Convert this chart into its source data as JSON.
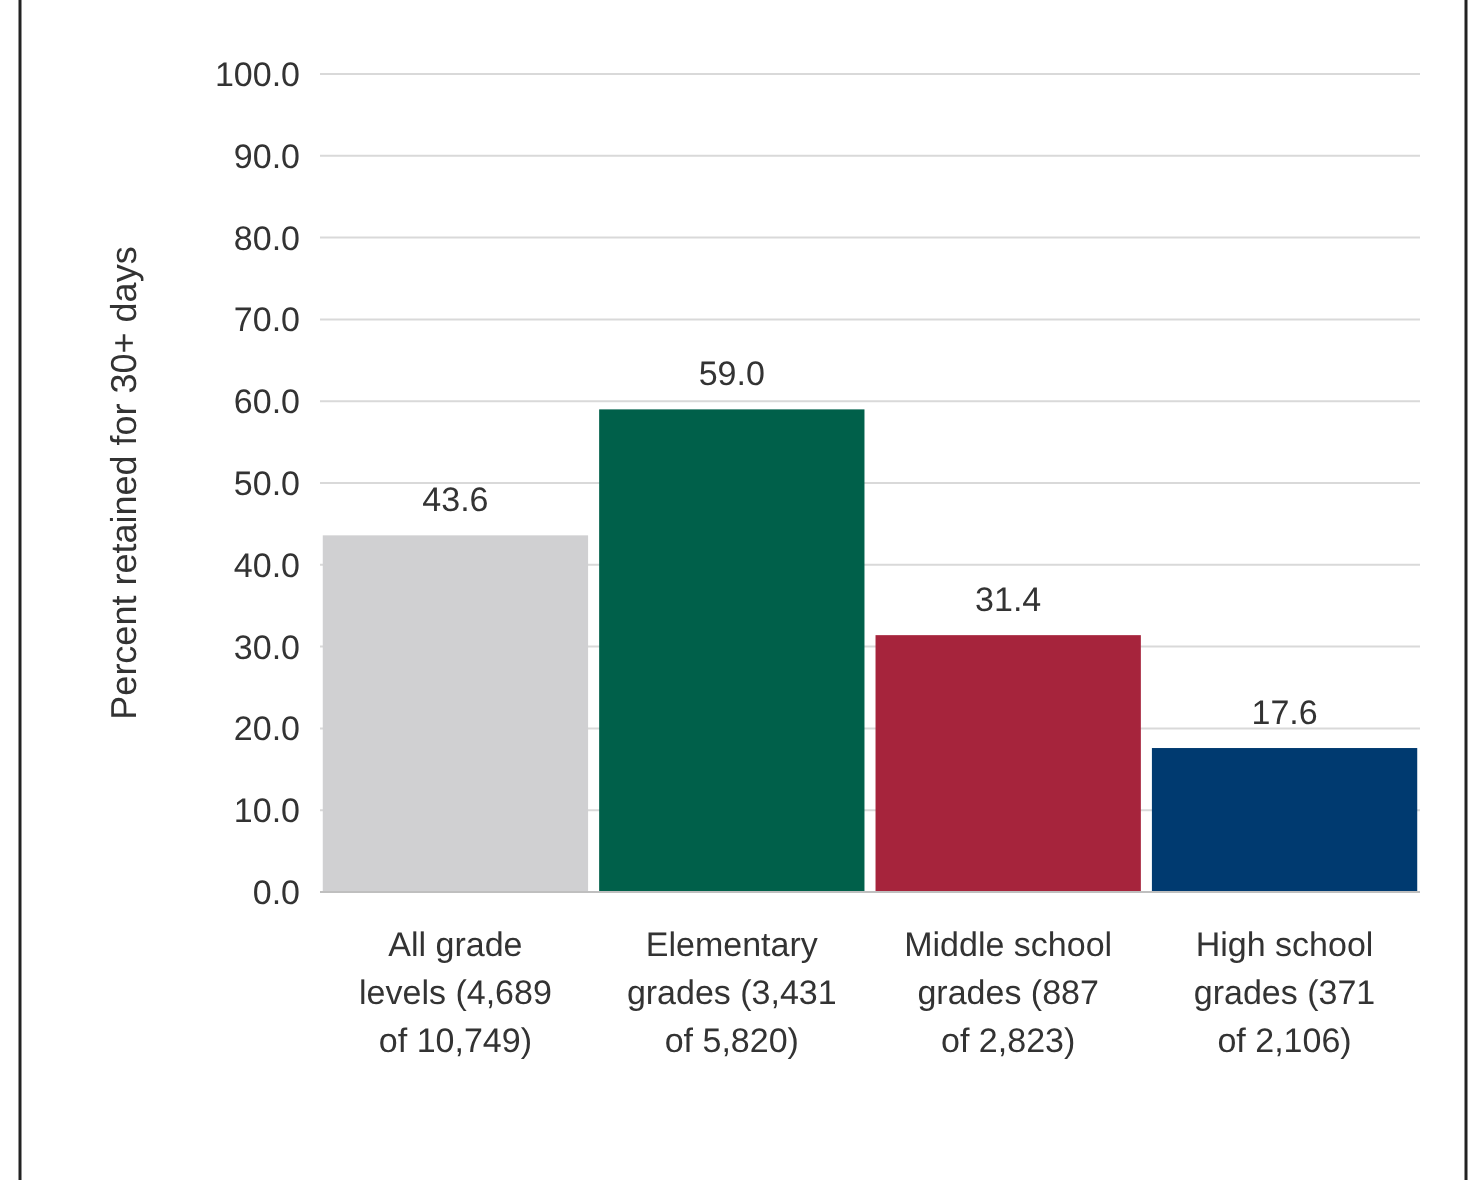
{
  "chart_data": {
    "type": "bar",
    "ylabel": "Percent retained for 30+ days",
    "categories": [
      "All grade levels (4,689 of 10,749)",
      "Elementary grades (3,431 of 5,820)",
      "Middle school grades (887 of 2,823)",
      "High school grades (371 of 2,106)"
    ],
    "values": [
      43.6,
      59.0,
      31.4,
      17.6
    ],
    "value_labels": [
      "43.6",
      "59.0",
      "31.4",
      "17.6"
    ],
    "colors": [
      "#d0d0d2",
      "#00604a",
      "#a6243c",
      "#003a70"
    ],
    "ylim": [
      0,
      100
    ],
    "yticks": [
      {
        "value": 0,
        "label": "0.0"
      },
      {
        "value": 10,
        "label": "10.0"
      },
      {
        "value": 20,
        "label": "20.0"
      },
      {
        "value": 30,
        "label": "30.0"
      },
      {
        "value": 40,
        "label": "40.0"
      },
      {
        "value": 50,
        "label": "50.0"
      },
      {
        "value": 60,
        "label": "60.0"
      },
      {
        "value": 70,
        "label": "70.0"
      },
      {
        "value": 80,
        "label": "80.0"
      },
      {
        "value": 90,
        "label": "90.0"
      },
      {
        "value": 100,
        "label": "100.0"
      }
    ],
    "grid": "y"
  }
}
